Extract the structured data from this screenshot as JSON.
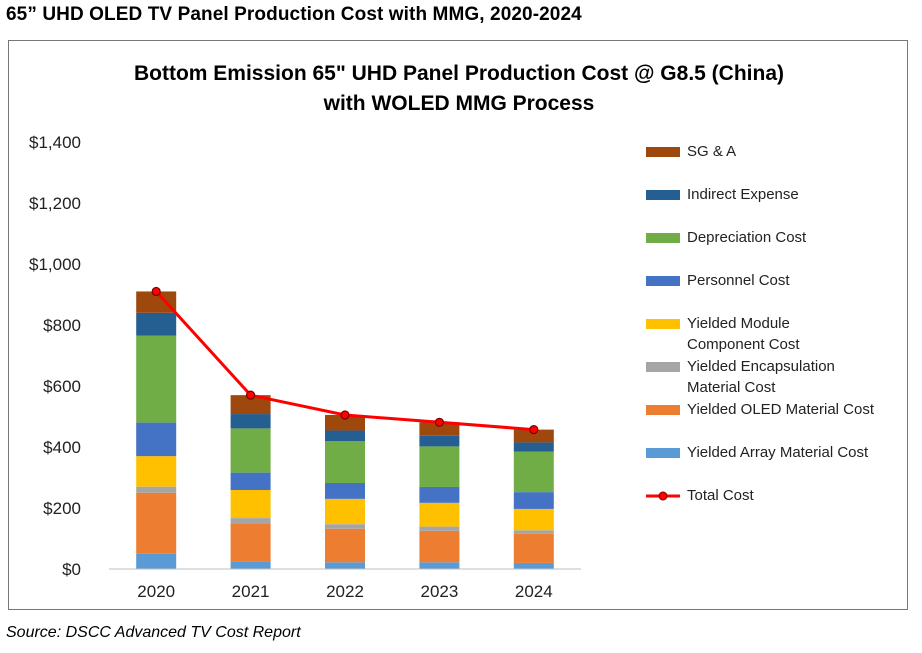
{
  "page": {
    "heading": "65” UHD OLED TV Panel Production Cost with MMG, 2020-2024",
    "source": "Source: DSCC Advanced TV Cost Report"
  },
  "chart_data": {
    "type": "bar",
    "stacked": true,
    "title_line1": "Bottom Emission 65\" UHD  Panel Production Cost @ G8.5 (China)",
    "title_line2": "with WOLED MMG Process",
    "categories": [
      "2020",
      "2021",
      "2022",
      "2023",
      "2024"
    ],
    "ylim": [
      0,
      1400
    ],
    "yticks": [
      0,
      200,
      400,
      600,
      800,
      1000,
      1200,
      1400
    ],
    "ytick_labels": [
      "$0",
      "$200",
      "$400",
      "$600",
      "$800",
      "$1,000",
      "$1,200",
      "$1,400"
    ],
    "grid": false,
    "legend_position": "right",
    "series": [
      {
        "name": "Yielded Array Material Cost",
        "color": "#5b9bd5",
        "values": [
          50,
          25,
          22,
          22,
          20
        ]
      },
      {
        "name": "Yielded OLED Material Cost",
        "color": "#ed7d31",
        "values": [
          200,
          125,
          110,
          103,
          95
        ]
      },
      {
        "name": "Yielded Encapsulation Material Cost",
        "color": "#a5a5a5",
        "values": [
          20,
          17,
          15,
          14,
          12
        ]
      },
      {
        "name": "Yielded Module Component Cost",
        "color": "#ffc000",
        "values": [
          100,
          92,
          83,
          78,
          70
        ]
      },
      {
        "name": "Personnel Cost",
        "color": "#4472c4",
        "values": [
          110,
          57,
          52,
          52,
          55
        ]
      },
      {
        "name": "Depreciation Cost",
        "color": "#70ad47",
        "values": [
          285,
          145,
          137,
          133,
          133
        ]
      },
      {
        "name": "Indirect Expense",
        "color": "#255e91",
        "values": [
          75,
          47,
          35,
          35,
          30
        ]
      },
      {
        "name": "SG & A",
        "color": "#9e480e",
        "values": [
          70,
          62,
          51,
          44,
          42
        ]
      }
    ],
    "total_series": {
      "name": "Total Cost",
      "color": "#ff0000",
      "values": [
        910,
        570,
        505,
        481,
        457
      ]
    },
    "legend_order": [
      {
        "label": "SG & A",
        "color": "#9e480e",
        "kind": "box"
      },
      {
        "label": "Indirect Expense",
        "color": "#255e91",
        "kind": "box"
      },
      {
        "label": "Depreciation Cost",
        "color": "#70ad47",
        "kind": "box"
      },
      {
        "label": "Personnel Cost",
        "color": "#4472c4",
        "kind": "box"
      },
      {
        "label": "Yielded Module Component Cost",
        "color": "#ffc000",
        "kind": "box"
      },
      {
        "label": "Yielded Encapsulation Material Cost",
        "color": "#a5a5a5",
        "kind": "box"
      },
      {
        "label": "Yielded OLED Material Cost",
        "color": "#ed7d31",
        "kind": "box"
      },
      {
        "label": "Yielded Array Material Cost",
        "color": "#5b9bd5",
        "kind": "box"
      },
      {
        "label": "Total Cost",
        "color": "#ff0000",
        "kind": "line"
      }
    ]
  }
}
